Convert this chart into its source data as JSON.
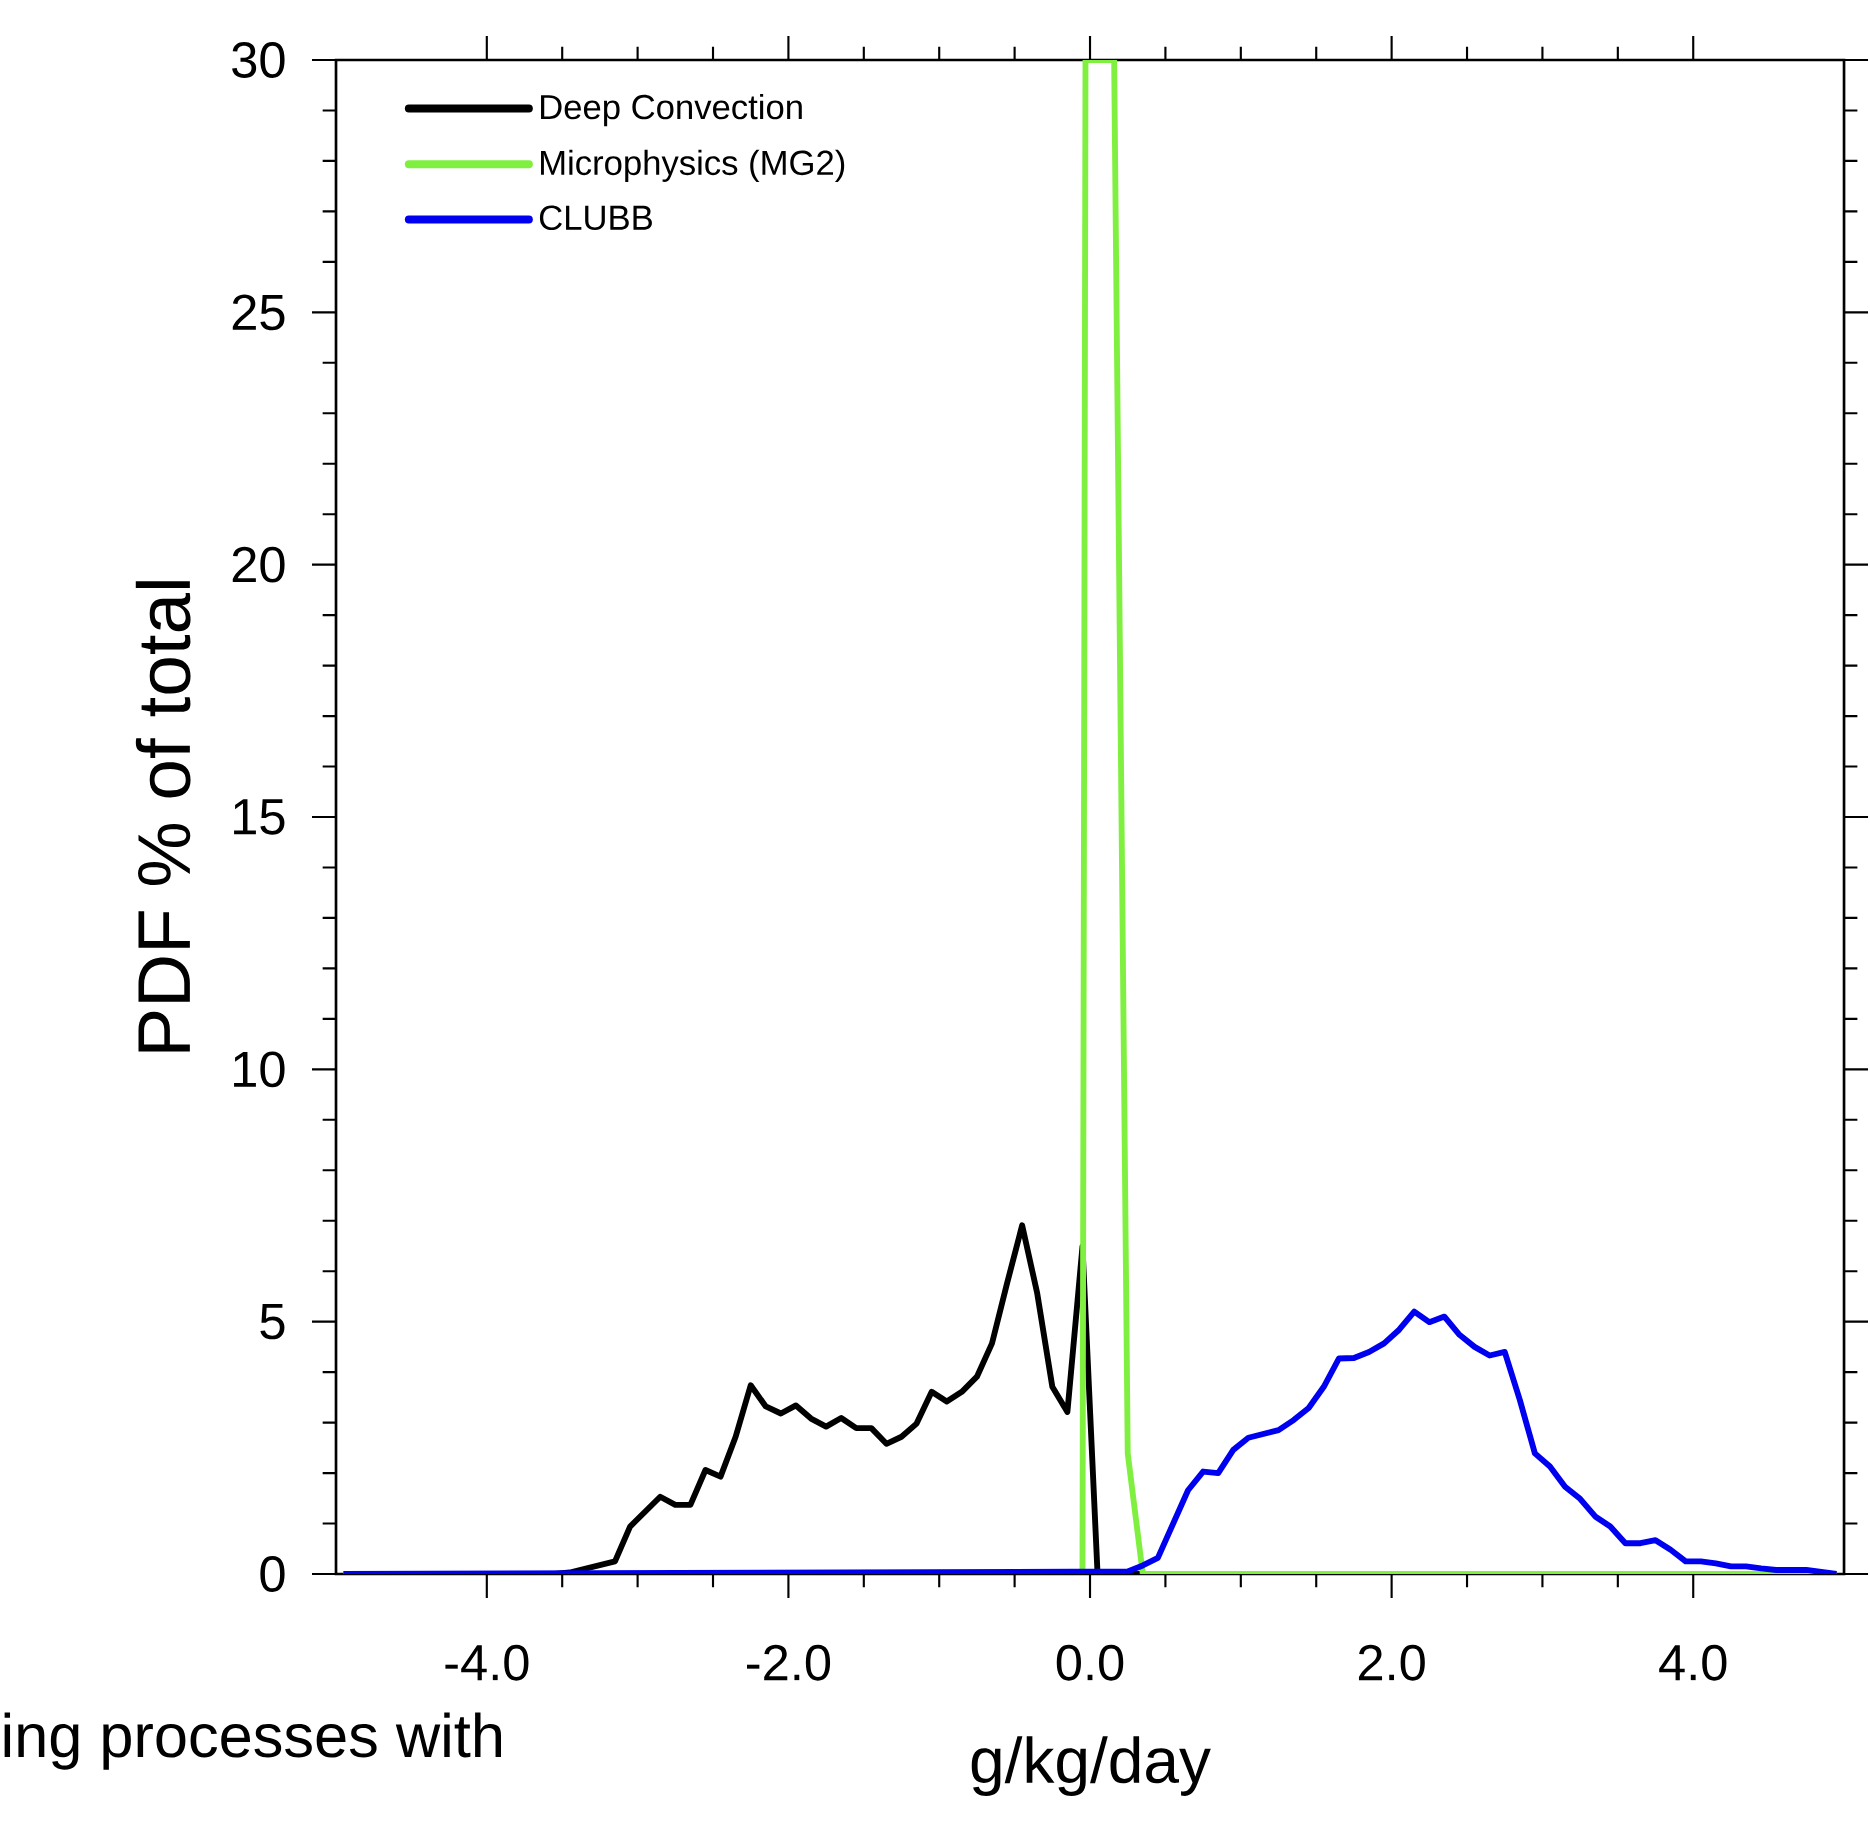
{
  "chart_data": {
    "type": "line",
    "xlabel": "g/kg/day",
    "ylabel": "PDF % of total",
    "xlim": [
      -5,
      5
    ],
    "ylim": [
      0,
      30
    ],
    "xticks": [
      {
        "value": -4,
        "label": "-4.0"
      },
      {
        "value": -2,
        "label": "-2.0"
      },
      {
        "value": 0,
        "label": "0.0"
      },
      {
        "value": 2,
        "label": "2.0"
      },
      {
        "value": 4,
        "label": "4.0"
      }
    ],
    "yticks": [
      0,
      5,
      10,
      15,
      20,
      25,
      30
    ],
    "grid": false,
    "legend": "top left",
    "marker": "none",
    "line_style": "solid",
    "annotations": [
      "ing processes with"
    ],
    "series": [
      {
        "name": "Deep Convection",
        "color": "#000000",
        "x": [
          -4.95,
          -3.55,
          -3.45,
          -3.15,
          -3.05,
          -2.85,
          -2.75,
          -2.65,
          -2.55,
          -2.45,
          -2.35,
          -2.25,
          -2.15,
          -2.05,
          -1.95,
          -1.85,
          -1.75,
          -1.65,
          -1.55,
          -1.45,
          -1.35,
          -1.25,
          -1.15,
          -1.05,
          -0.95,
          -0.85,
          -0.75,
          -0.65,
          -0.55,
          -0.45,
          -0.35,
          -0.25,
          -0.15,
          -0.05,
          0.05,
          4.95
        ],
        "values": [
          0,
          0,
          0.03,
          0.25,
          0.94,
          1.53,
          1.37,
          1.37,
          2.06,
          1.93,
          2.72,
          3.74,
          3.32,
          3.18,
          3.34,
          3.08,
          2.92,
          3.09,
          2.89,
          2.89,
          2.58,
          2.72,
          2.98,
          3.61,
          3.42,
          3.61,
          3.91,
          4.57,
          5.76,
          6.91,
          5.56,
          3.71,
          3.21,
          6.49,
          0,
          0
        ]
      },
      {
        "name": "Microphysics (MG2)",
        "color": "#80f040",
        "x": [
          -4.95,
          -0.05,
          -0.03,
          0.16,
          0.25,
          0.35,
          4.95
        ],
        "values": [
          0,
          0,
          30,
          30,
          2.39,
          0,
          0
        ]
      },
      {
        "name": "CLUBB",
        "color": "#0000f0",
        "x": [
          -4.95,
          0.25,
          0.35,
          0.45,
          0.65,
          0.75,
          0.85,
          0.95,
          1.05,
          1.25,
          1.35,
          1.45,
          1.55,
          1.65,
          1.75,
          1.85,
          1.95,
          2.05,
          2.15,
          2.25,
          2.35,
          2.45,
          2.55,
          2.65,
          2.75,
          2.85,
          2.95,
          3.05,
          3.15,
          3.25,
          3.35,
          3.45,
          3.55,
          3.65,
          3.75,
          3.85,
          3.95,
          4.05,
          4.15,
          4.25,
          4.35,
          4.45,
          4.55,
          4.65,
          4.75,
          4.95
        ],
        "values": [
          0,
          0.05,
          0.17,
          0.32,
          1.66,
          2.03,
          2.0,
          2.46,
          2.7,
          2.85,
          3.05,
          3.29,
          3.71,
          4.27,
          4.28,
          4.4,
          4.57,
          4.84,
          5.2,
          4.99,
          5.1,
          4.74,
          4.5,
          4.33,
          4.4,
          3.45,
          2.39,
          2.13,
          1.73,
          1.49,
          1.14,
          0.94,
          0.61,
          0.61,
          0.67,
          0.48,
          0.25,
          0.25,
          0.21,
          0.15,
          0.15,
          0.11,
          0.08,
          0.08,
          0.08,
          0.0
        ]
      }
    ]
  }
}
